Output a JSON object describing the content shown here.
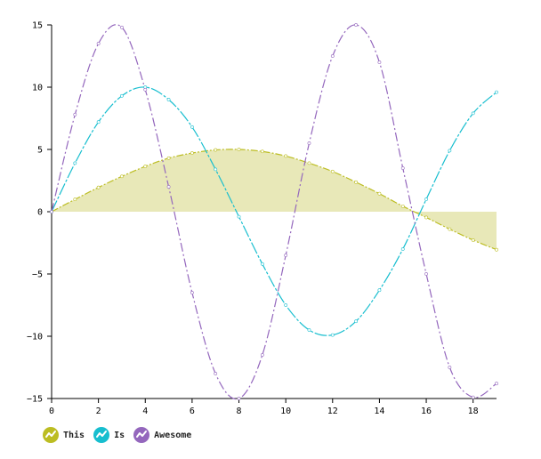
{
  "chart_data": {
    "type": "line",
    "title": "",
    "xlabel": "",
    "ylabel": "",
    "xlim": [
      0,
      19
    ],
    "ylim": [
      -15,
      15
    ],
    "x_ticks": [
      0,
      2,
      4,
      6,
      8,
      10,
      12,
      14,
      16,
      18
    ],
    "y_ticks": [
      15,
      10,
      5,
      0,
      -5,
      -10,
      -15
    ],
    "x_tick_labels": [
      "0",
      "2",
      "4",
      "6",
      "8",
      "10",
      "12",
      "14",
      "16",
      "18"
    ],
    "y_tick_labels": [
      "15",
      "10",
      "5",
      "0",
      "−5",
      "−10",
      "−15"
    ],
    "x": [
      0,
      1,
      2,
      3,
      4,
      5,
      6,
      7,
      8,
      9,
      10,
      11,
      12,
      13,
      14,
      15,
      16,
      17,
      18,
      19
    ],
    "series": [
      {
        "name": "This",
        "color": "#bcbd22",
        "fill": "#e8e8b8",
        "area": true,
        "values": [
          0,
          0.99,
          1.95,
          2.84,
          3.64,
          4.3,
          4.71,
          4.96,
          5.0,
          4.84,
          4.47,
          3.9,
          3.23,
          2.37,
          1.45,
          0.44,
          -0.46,
          -1.4,
          -2.28,
          -3.05
        ]
      },
      {
        "name": "Is",
        "color": "#17becf",
        "area": false,
        "values": [
          0,
          3.9,
          7.2,
          9.3,
          10.0,
          9.0,
          6.8,
          3.4,
          -0.4,
          -4.2,
          -7.5,
          -9.5,
          -9.9,
          -8.8,
          -6.3,
          -3.0,
          1.0,
          4.9,
          7.9,
          9.6
        ]
      },
      {
        "name": "Awesome",
        "color": "#9467bd",
        "area": false,
        "values": [
          0,
          7.8,
          13.5,
          14.8,
          9.8,
          2.0,
          -6.5,
          -13.0,
          -15.0,
          -11.5,
          -3.5,
          5.5,
          12.5,
          15.0,
          12.0,
          3.5,
          -5.0,
          -12.5,
          -14.9,
          -13.8
        ]
      }
    ],
    "legend": {
      "position": "bottom-left",
      "entries": [
        "This",
        "Is",
        "Awesome"
      ]
    }
  }
}
